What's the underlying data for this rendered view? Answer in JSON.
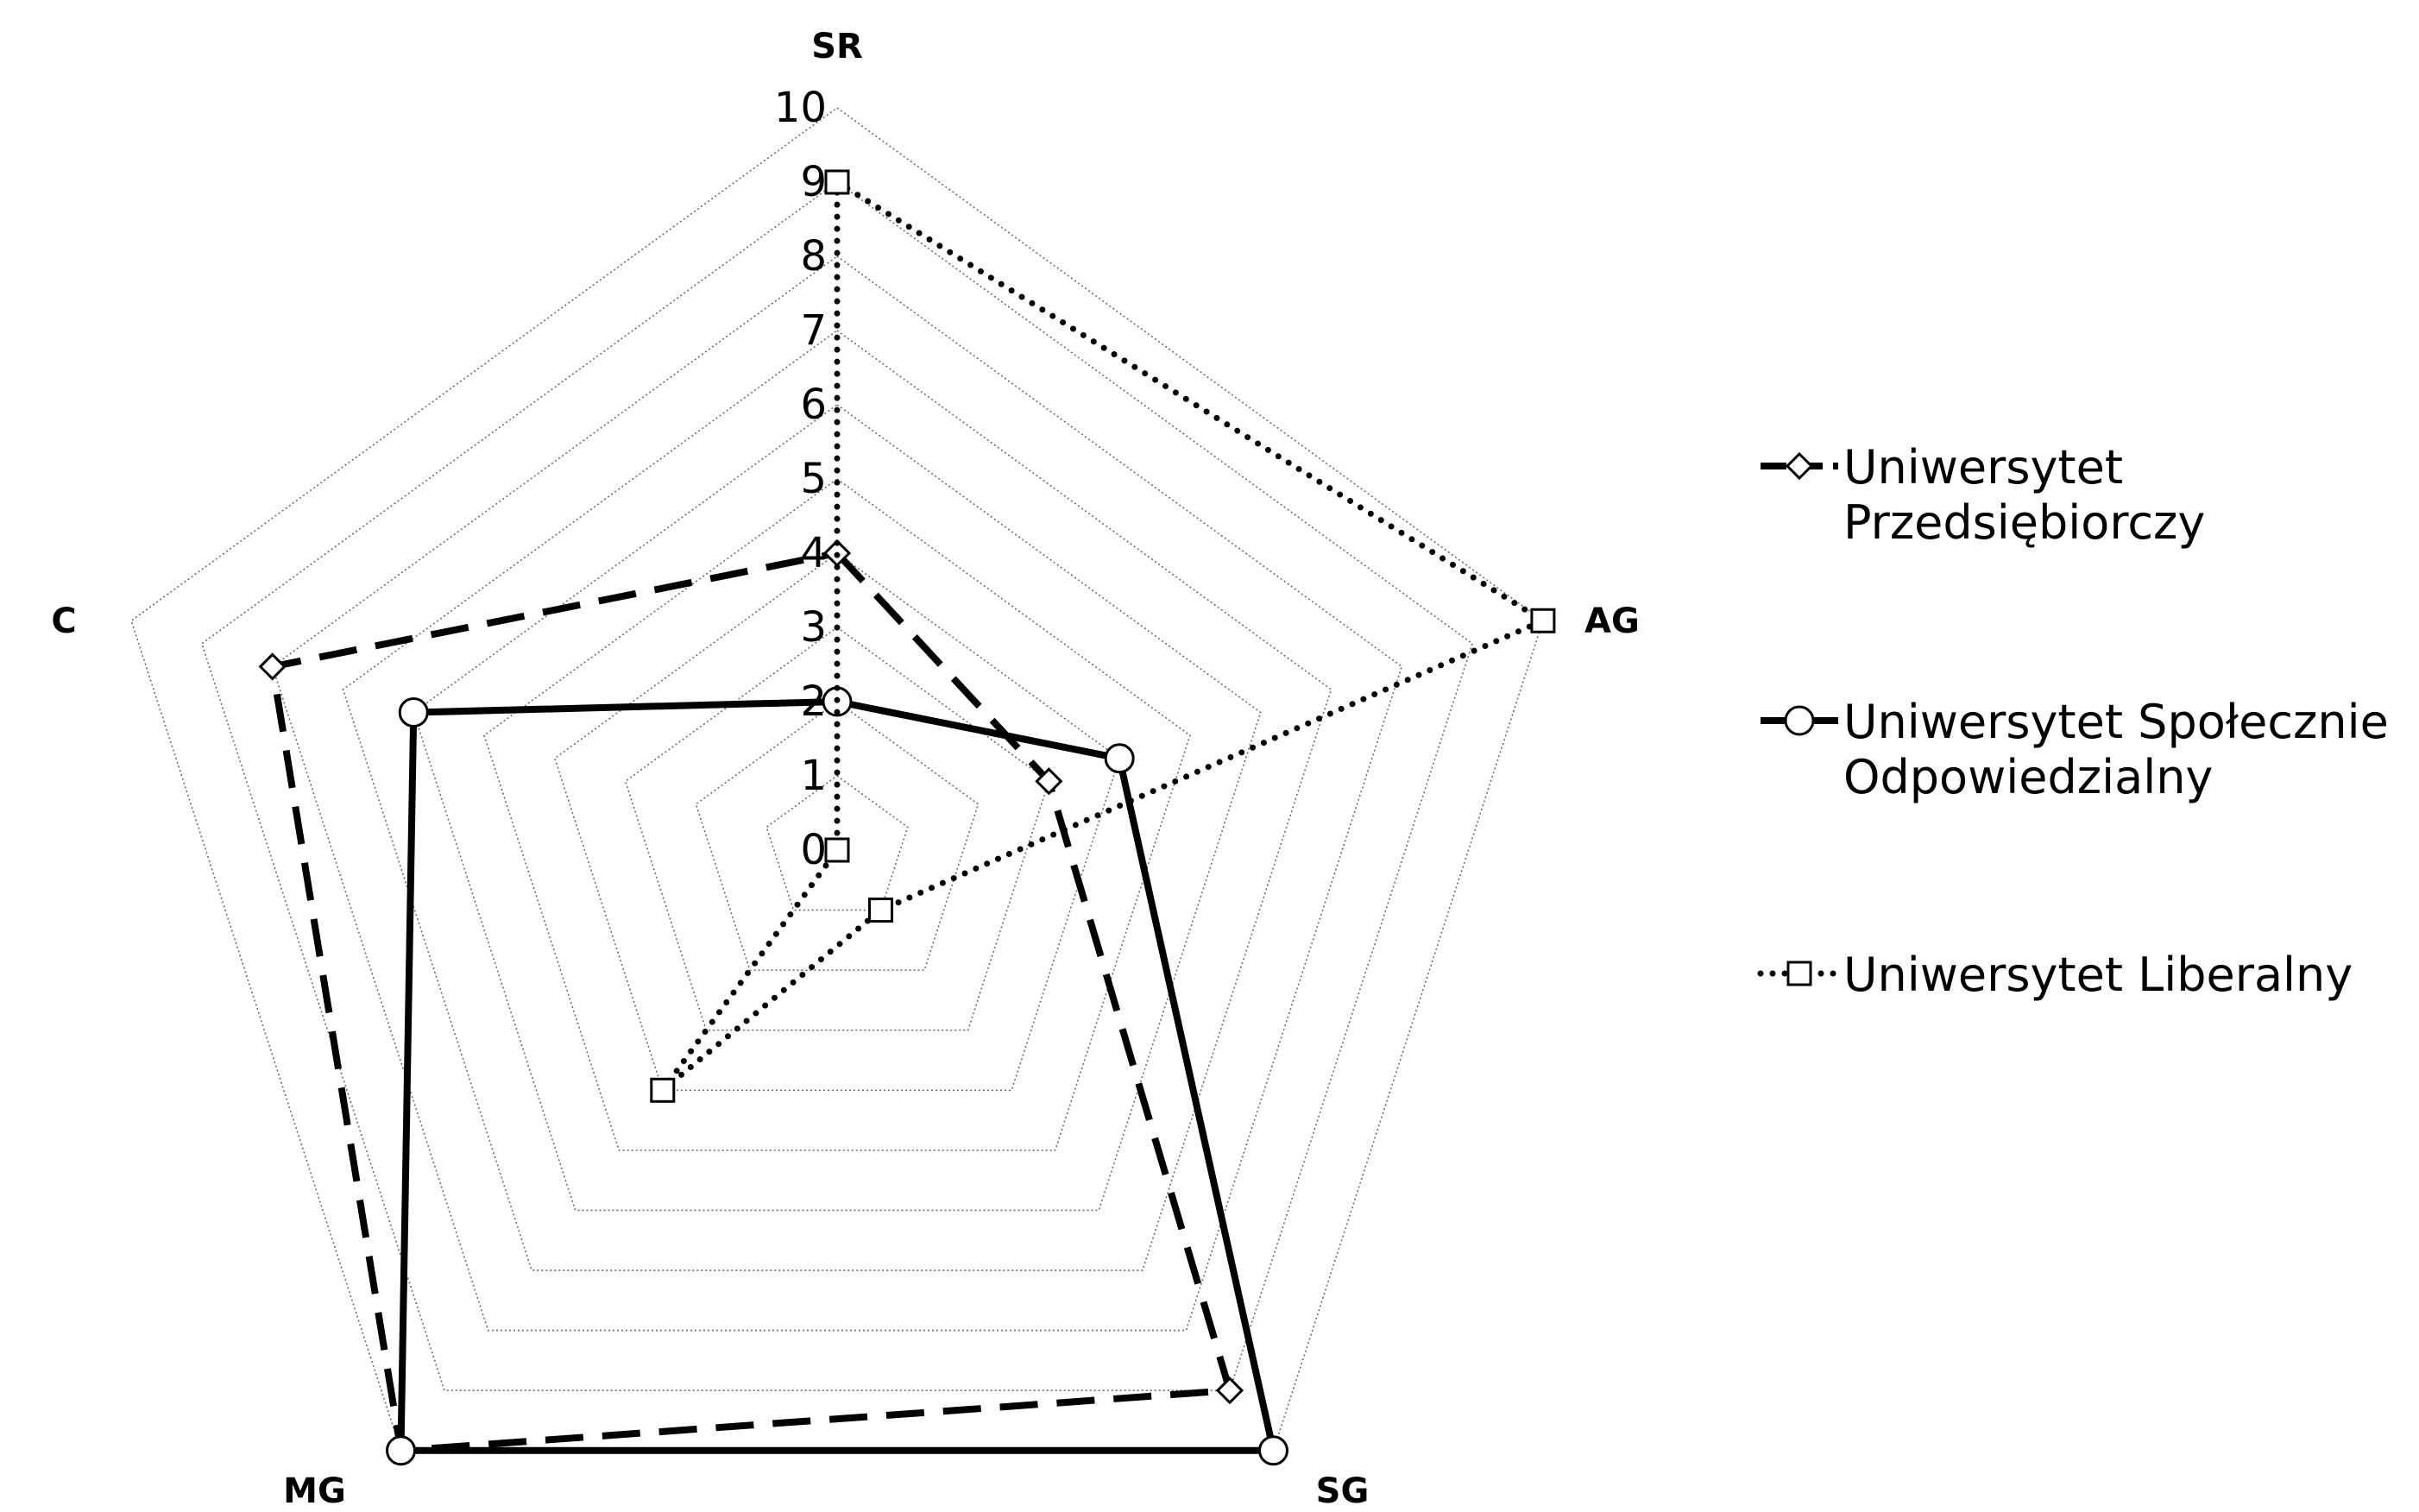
{
  "chart_data": {
    "type": "radar",
    "categories": [
      "SR",
      "AG",
      "SG",
      "MG",
      "C"
    ],
    "radial_range": [
      0,
      10
    ],
    "radial_ticks": [
      "0",
      "1",
      "2",
      "3",
      "4",
      "5",
      "6",
      "7",
      "8",
      "9",
      "10"
    ],
    "grid": true,
    "legend_position": "right",
    "series": [
      {
        "name": "Uniwersytet Przedsiębiorczy",
        "name_lines": [
          "Uniwersytet",
          "Przedsiębiorczy"
        ],
        "values": [
          4,
          3,
          9,
          10,
          8
        ],
        "line_style": "dashed",
        "marker": "diamond"
      },
      {
        "name": "Uniwersytet Społecznie Odpowiedzialny",
        "name_lines": [
          "Uniwersytet Społecznie",
          "Odpowiedzialny"
        ],
        "values": [
          2,
          4,
          10,
          10,
          6
        ],
        "line_style": "solid",
        "marker": "circle"
      },
      {
        "name": "Uniwersytet Liberalny",
        "name_lines": [
          "Uniwersytet Liberalny"
        ],
        "values": [
          9,
          10,
          1,
          4,
          0
        ],
        "line_style": "dotted",
        "marker": "square"
      }
    ]
  }
}
